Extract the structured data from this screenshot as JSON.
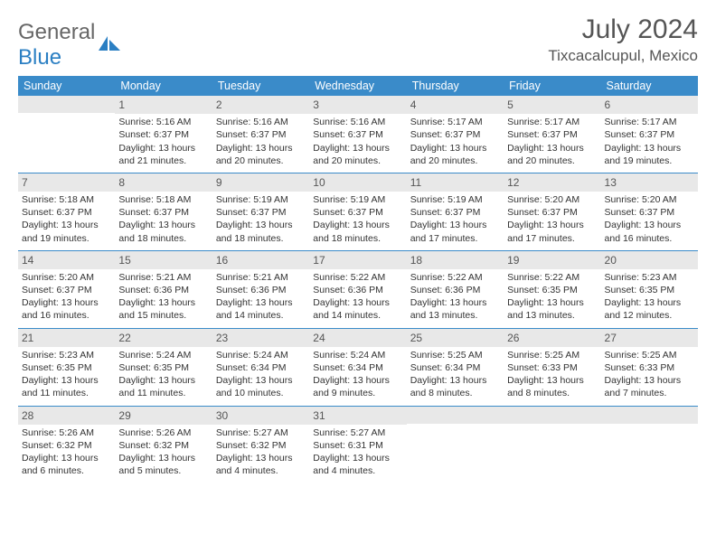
{
  "brand": {
    "part1": "General",
    "part2": "Blue"
  },
  "title": "July 2024",
  "location": "Tixcacalcupul, Mexico",
  "colors": {
    "header_bg": "#3a8bc9",
    "header_text": "#ffffff",
    "daynum_bg": "#e8e8e8",
    "rule": "#3a8bc9",
    "brand_gray": "#666666",
    "brand_blue": "#2b7fc3",
    "body_text": "#333333"
  },
  "typography": {
    "title_fontsize": 30,
    "location_fontsize": 17,
    "header_fontsize": 12.5,
    "cell_fontsize": 10.5
  },
  "dow": [
    "Sunday",
    "Monday",
    "Tuesday",
    "Wednesday",
    "Thursday",
    "Friday",
    "Saturday"
  ],
  "weeks": [
    [
      null,
      {
        "n": "1",
        "l": [
          "Sunrise: 5:16 AM",
          "Sunset: 6:37 PM",
          "Daylight: 13 hours and 21 minutes."
        ]
      },
      {
        "n": "2",
        "l": [
          "Sunrise: 5:16 AM",
          "Sunset: 6:37 PM",
          "Daylight: 13 hours and 20 minutes."
        ]
      },
      {
        "n": "3",
        "l": [
          "Sunrise: 5:16 AM",
          "Sunset: 6:37 PM",
          "Daylight: 13 hours and 20 minutes."
        ]
      },
      {
        "n": "4",
        "l": [
          "Sunrise: 5:17 AM",
          "Sunset: 6:37 PM",
          "Daylight: 13 hours and 20 minutes."
        ]
      },
      {
        "n": "5",
        "l": [
          "Sunrise: 5:17 AM",
          "Sunset: 6:37 PM",
          "Daylight: 13 hours and 20 minutes."
        ]
      },
      {
        "n": "6",
        "l": [
          "Sunrise: 5:17 AM",
          "Sunset: 6:37 PM",
          "Daylight: 13 hours and 19 minutes."
        ]
      }
    ],
    [
      {
        "n": "7",
        "l": [
          "Sunrise: 5:18 AM",
          "Sunset: 6:37 PM",
          "Daylight: 13 hours and 19 minutes."
        ]
      },
      {
        "n": "8",
        "l": [
          "Sunrise: 5:18 AM",
          "Sunset: 6:37 PM",
          "Daylight: 13 hours and 18 minutes."
        ]
      },
      {
        "n": "9",
        "l": [
          "Sunrise: 5:19 AM",
          "Sunset: 6:37 PM",
          "Daylight: 13 hours and 18 minutes."
        ]
      },
      {
        "n": "10",
        "l": [
          "Sunrise: 5:19 AM",
          "Sunset: 6:37 PM",
          "Daylight: 13 hours and 18 minutes."
        ]
      },
      {
        "n": "11",
        "l": [
          "Sunrise: 5:19 AM",
          "Sunset: 6:37 PM",
          "Daylight: 13 hours and 17 minutes."
        ]
      },
      {
        "n": "12",
        "l": [
          "Sunrise: 5:20 AM",
          "Sunset: 6:37 PM",
          "Daylight: 13 hours and 17 minutes."
        ]
      },
      {
        "n": "13",
        "l": [
          "Sunrise: 5:20 AM",
          "Sunset: 6:37 PM",
          "Daylight: 13 hours and 16 minutes."
        ]
      }
    ],
    [
      {
        "n": "14",
        "l": [
          "Sunrise: 5:20 AM",
          "Sunset: 6:37 PM",
          "Daylight: 13 hours and 16 minutes."
        ]
      },
      {
        "n": "15",
        "l": [
          "Sunrise: 5:21 AM",
          "Sunset: 6:36 PM",
          "Daylight: 13 hours and 15 minutes."
        ]
      },
      {
        "n": "16",
        "l": [
          "Sunrise: 5:21 AM",
          "Sunset: 6:36 PM",
          "Daylight: 13 hours and 14 minutes."
        ]
      },
      {
        "n": "17",
        "l": [
          "Sunrise: 5:22 AM",
          "Sunset: 6:36 PM",
          "Daylight: 13 hours and 14 minutes."
        ]
      },
      {
        "n": "18",
        "l": [
          "Sunrise: 5:22 AM",
          "Sunset: 6:36 PM",
          "Daylight: 13 hours and 13 minutes."
        ]
      },
      {
        "n": "19",
        "l": [
          "Sunrise: 5:22 AM",
          "Sunset: 6:35 PM",
          "Daylight: 13 hours and 13 minutes."
        ]
      },
      {
        "n": "20",
        "l": [
          "Sunrise: 5:23 AM",
          "Sunset: 6:35 PM",
          "Daylight: 13 hours and 12 minutes."
        ]
      }
    ],
    [
      {
        "n": "21",
        "l": [
          "Sunrise: 5:23 AM",
          "Sunset: 6:35 PM",
          "Daylight: 13 hours and 11 minutes."
        ]
      },
      {
        "n": "22",
        "l": [
          "Sunrise: 5:24 AM",
          "Sunset: 6:35 PM",
          "Daylight: 13 hours and 11 minutes."
        ]
      },
      {
        "n": "23",
        "l": [
          "Sunrise: 5:24 AM",
          "Sunset: 6:34 PM",
          "Daylight: 13 hours and 10 minutes."
        ]
      },
      {
        "n": "24",
        "l": [
          "Sunrise: 5:24 AM",
          "Sunset: 6:34 PM",
          "Daylight: 13 hours and 9 minutes."
        ]
      },
      {
        "n": "25",
        "l": [
          "Sunrise: 5:25 AM",
          "Sunset: 6:34 PM",
          "Daylight: 13 hours and 8 minutes."
        ]
      },
      {
        "n": "26",
        "l": [
          "Sunrise: 5:25 AM",
          "Sunset: 6:33 PM",
          "Daylight: 13 hours and 8 minutes."
        ]
      },
      {
        "n": "27",
        "l": [
          "Sunrise: 5:25 AM",
          "Sunset: 6:33 PM",
          "Daylight: 13 hours and 7 minutes."
        ]
      }
    ],
    [
      {
        "n": "28",
        "l": [
          "Sunrise: 5:26 AM",
          "Sunset: 6:32 PM",
          "Daylight: 13 hours and 6 minutes."
        ]
      },
      {
        "n": "29",
        "l": [
          "Sunrise: 5:26 AM",
          "Sunset: 6:32 PM",
          "Daylight: 13 hours and 5 minutes."
        ]
      },
      {
        "n": "30",
        "l": [
          "Sunrise: 5:27 AM",
          "Sunset: 6:32 PM",
          "Daylight: 13 hours and 4 minutes."
        ]
      },
      {
        "n": "31",
        "l": [
          "Sunrise: 5:27 AM",
          "Sunset: 6:31 PM",
          "Daylight: 13 hours and 4 minutes."
        ]
      },
      null,
      null,
      null
    ]
  ]
}
